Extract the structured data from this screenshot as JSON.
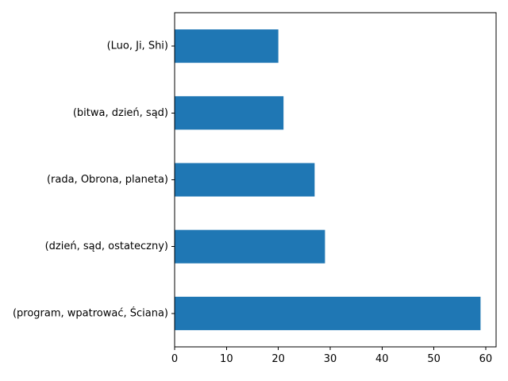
{
  "chart_data": {
    "type": "bar",
    "orientation": "horizontal",
    "categories": [
      "(Luo, Ji, Shi)",
      "(bitwa, dzień, sąd)",
      "(rada, Obrona, planeta)",
      "(dzień, sąd, ostateczny)",
      "(program, wpatrować, Ściana)"
    ],
    "values": [
      20,
      21,
      27,
      29,
      59
    ],
    "xlim": [
      0,
      62
    ],
    "xticks": [
      0,
      10,
      20,
      30,
      40,
      50,
      60
    ],
    "bar_color": "#1f77b4",
    "grid": false,
    "legend": "none"
  }
}
